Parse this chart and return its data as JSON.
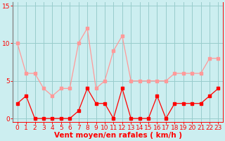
{
  "x": [
    0,
    1,
    2,
    3,
    4,
    5,
    6,
    7,
    8,
    9,
    10,
    11,
    12,
    13,
    14,
    15,
    16,
    17,
    18,
    19,
    20,
    21,
    22,
    23
  ],
  "wind_avg": [
    2,
    3,
    0,
    0,
    0,
    0,
    0,
    1,
    4,
    2,
    2,
    0,
    4,
    0,
    0,
    0,
    3,
    0,
    2,
    2,
    2,
    2,
    3,
    4
  ],
  "wind_gust": [
    10,
    6,
    6,
    4,
    3,
    4,
    4,
    10,
    12,
    4,
    5,
    9,
    11,
    5,
    5,
    5,
    5,
    5,
    6,
    6,
    6,
    6,
    8,
    8
  ],
  "avg_color": "#ff0000",
  "gust_color": "#ff9999",
  "background_color": "#cceef0",
  "grid_color": "#99cccc",
  "xlabel": "Vent moyen/en rafales ( km/h )",
  "xlabel_color": "#ff0000",
  "yticks": [
    0,
    5,
    10,
    15
  ],
  "ytick_labels": [
    "0",
    "5",
    "10",
    "15"
  ],
  "ylim": [
    -0.5,
    15.5
  ],
  "xlim": [
    -0.5,
    23.5
  ],
  "tick_fontsize": 6.5,
  "xlabel_fontsize": 7.5
}
